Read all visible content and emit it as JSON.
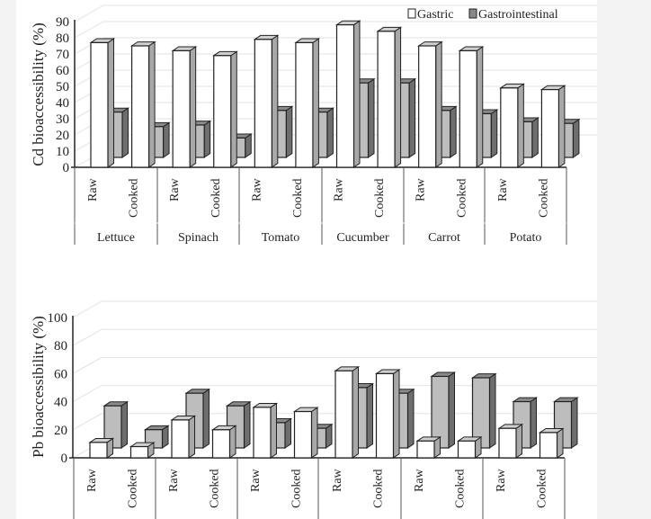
{
  "chart_data": [
    {
      "type": "bar",
      "ylabel": "Cd bioaccessibility (%)",
      "ylim": [
        0,
        90
      ],
      "yticks": [
        "0",
        "10",
        "20",
        "30",
        "40",
        "50",
        "60",
        "70",
        "80",
        "90"
      ],
      "grid": true,
      "legend_position": "top-right",
      "groups": [
        "Lettuce",
        "Spinach",
        "Tomato",
        "Cucumber",
        "Carrot",
        "Potato"
      ],
      "categories": [
        "Raw",
        "Cooked",
        "Raw",
        "Cooked",
        "Raw",
        "Cooked",
        "Raw",
        "Cooked",
        "Raw",
        "Cooked",
        "Raw",
        "Cooked"
      ],
      "series": [
        {
          "name": "Gastric",
          "color": "#ffffff",
          "values": [
            77,
            75,
            72,
            69,
            79,
            77,
            88,
            84,
            75,
            72,
            49,
            48
          ]
        },
        {
          "name": "Gastrointestinal",
          "color": "#bdbdbd",
          "values": [
            28,
            19,
            20,
            12,
            29,
            28,
            46,
            46,
            29,
            27,
            22,
            21
          ]
        }
      ]
    },
    {
      "type": "bar",
      "ylabel": "Pb bioaccessibility (%)",
      "ylim": [
        0,
        100
      ],
      "yticks": [
        "0",
        "20",
        "40",
        "60",
        "80",
        "100"
      ],
      "grid": true,
      "categories": [
        "Raw",
        "Cooked",
        "Raw",
        "Cooked",
        "Raw",
        "Cooked",
        "Raw",
        "Cooked",
        "Raw",
        "Cooked",
        "Raw",
        "Cooked"
      ],
      "series": [
        {
          "color": "#ffffff",
          "values": [
            11,
            8,
            27,
            20,
            36,
            33,
            62,
            60,
            12,
            12,
            21,
            18
          ]
        },
        {
          "color": "#bdbdbd",
          "values": [
            30,
            13,
            39,
            30,
            18,
            14,
            43,
            39,
            51,
            50,
            33,
            33
          ]
        }
      ]
    }
  ]
}
